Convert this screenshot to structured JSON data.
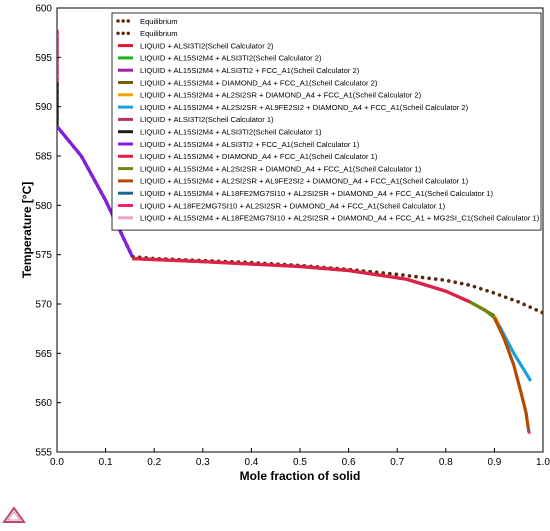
{
  "chart_data": {
    "type": "line",
    "xlabel": "Mole fraction of solid",
    "ylabel": "Temperature [°C]",
    "xlim": [
      0,
      1.0
    ],
    "ylim": [
      555,
      600
    ],
    "xticks": [
      "0.0",
      "0.1",
      "0.2",
      "0.3",
      "0.4",
      "0.5",
      "0.6",
      "0.7",
      "0.8",
      "0.9",
      "1.0"
    ],
    "yticks": [
      "555",
      "560",
      "565",
      "570",
      "575",
      "580",
      "585",
      "590",
      "595",
      "600"
    ],
    "grid": false,
    "legend_position": "top-right",
    "series": [
      {
        "name": "Equilibrium",
        "style": "dotted",
        "color": "#5b2a0e",
        "x": [
          0,
          0.05,
          0.1,
          0.155,
          0.2,
          0.3,
          0.4,
          0.5,
          0.6,
          0.7,
          0.8,
          0.85,
          0.9,
          0.95,
          1.0
        ],
        "y": [
          588,
          585,
          580.5,
          574.8,
          574.6,
          574.4,
          574.2,
          573.9,
          573.5,
          573.0,
          572.4,
          571.9,
          571.1,
          570.2,
          569.1
        ]
      },
      {
        "name": "Equilibrium",
        "style": "dotted",
        "color": "#5b2a0e",
        "x": [
          0,
          0,
          0,
          0
        ],
        "y": [
          597.5,
          594,
          591,
          588
        ]
      },
      {
        "name": "LIQUID + ALSI3TI2(Scheil Calculator 2)",
        "color": "#e8102a",
        "x": [
          0,
          0
        ],
        "y": [
          597.8,
          592
        ]
      },
      {
        "name": "LIQUID + AL15SI2M4 + ALSI3TI2(Scheil Calculator 2)",
        "color": "#1bb21b",
        "x": [
          0,
          0
        ],
        "y": [
          592,
          588.2
        ]
      },
      {
        "name": "LIQUID + AL15SI2M4 + ALSI3TI2 + FCC_A1(Scheil Calculator 2)",
        "color": "#a020a0",
        "x": [
          0,
          0.05,
          0.1,
          0.155
        ],
        "y": [
          588,
          585,
          580.5,
          574.8
        ]
      },
      {
        "name": "LIQUID + AL15SI2M4 + DIAMOND_A4 + FCC_A1(Scheil Calculator 2)",
        "color": "#7a5c10",
        "x": [
          0.155,
          0.3,
          0.5,
          0.6,
          0.72,
          0.8,
          0.85,
          0.9
        ],
        "y": [
          574.6,
          574.3,
          573.8,
          573.4,
          572.5,
          571.3,
          570.2,
          568.8
        ]
      },
      {
        "name": "LIQUID + AL15SI2M4 + AL2SI2SR + DIAMOND_A4 + FCC_A1(Scheil Calculator 2)",
        "color": "#f0a000",
        "x": [
          0.9,
          0.91
        ],
        "y": [
          568.8,
          567.8
        ]
      },
      {
        "name": "LIQUID + AL15SI2M4 + AL2SI2SR + AL9FE2SI2 + DIAMOND_A4 + FCC_A1(Scheil Calculator 2)",
        "color": "#19a0e0",
        "x": [
          0.91,
          0.94,
          0.975
        ],
        "y": [
          567.8,
          565.0,
          562.2
        ]
      },
      {
        "name": "LIQUID + ALSI3TI2(Scheil Calculator 1)",
        "color": "#c03060",
        "x": [
          0,
          0
        ],
        "y": [
          597.5,
          592.5
        ]
      },
      {
        "name": "LIQUID + AL15SI2M4 + ALSI3TI2(Scheil Calculator 1)",
        "color": "#202020",
        "x": [
          0,
          0
        ],
        "y": [
          592.5,
          588.2
        ]
      },
      {
        "name": "LIQUID + AL15SI2M4 + ALSI3TI2 + FCC_A1(Scheil Calculator 1)",
        "color": "#8020e0",
        "x": [
          0,
          0.05,
          0.1,
          0.155
        ],
        "y": [
          588,
          585,
          580.5,
          574.8
        ]
      },
      {
        "name": "LIQUID + AL15SI2M4 + DIAMOND_A4 + FCC_A1(Scheil Calculator 1)",
        "color": "#e0204a",
        "x": [
          0.155,
          0.3,
          0.5,
          0.6,
          0.72,
          0.8,
          0.85
        ],
        "y": [
          574.6,
          574.3,
          573.8,
          573.4,
          572.5,
          571.3,
          570.2
        ]
      },
      {
        "name": "LIQUID + AL15SI2M4 + AL2SI2SR + DIAMOND_A4 + FCC_A1(Scheil Calculator 1)",
        "color": "#6a8a10",
        "x": [
          0.85,
          0.88,
          0.9
        ],
        "y": [
          570.2,
          569.4,
          568.6
        ]
      },
      {
        "name": "LIQUID + AL15SI2M4 + AL2SI2SR + AL9FE2SI2 + DIAMOND_A4 + FCC_A1(Scheil Calculator 1)",
        "color": "#b34a00",
        "x": [
          0.9,
          0.92,
          0.94,
          0.955,
          0.965,
          0.97
        ],
        "y": [
          568.6,
          566.5,
          563.8,
          561.0,
          559.0,
          557.3
        ]
      },
      {
        "name": "LIQUID + AL15SI2M4 + AL18FE2MG7SI10 + AL2SI2SR + DIAMOND_A4 + FCC_A1(Scheil Calculator 1)",
        "color": "#1a6a8a",
        "x": [
          0.97,
          0.971
        ],
        "y": [
          557.3,
          557.1
        ]
      },
      {
        "name": "LIQUID + AL18FE2MG7SI10 + AL2SI2SR + DIAMOND_A4 + FCC_A1(Scheil Calculator 1)",
        "color": "#f0206a",
        "x": [
          0.971,
          0.972
        ],
        "y": [
          557.1,
          556.9
        ]
      },
      {
        "name": "LIQUID + AL15SI2M4 + AL18FE2MG7SI10 + AL2SI2SR + DIAMOND_A4 + FCC_A1 + MG2SI_C1(Scheil Calculator 1)",
        "color": "#f0a0c8",
        "x": [
          0.972,
          0.973
        ],
        "y": [
          556.9,
          556.8
        ]
      }
    ]
  }
}
